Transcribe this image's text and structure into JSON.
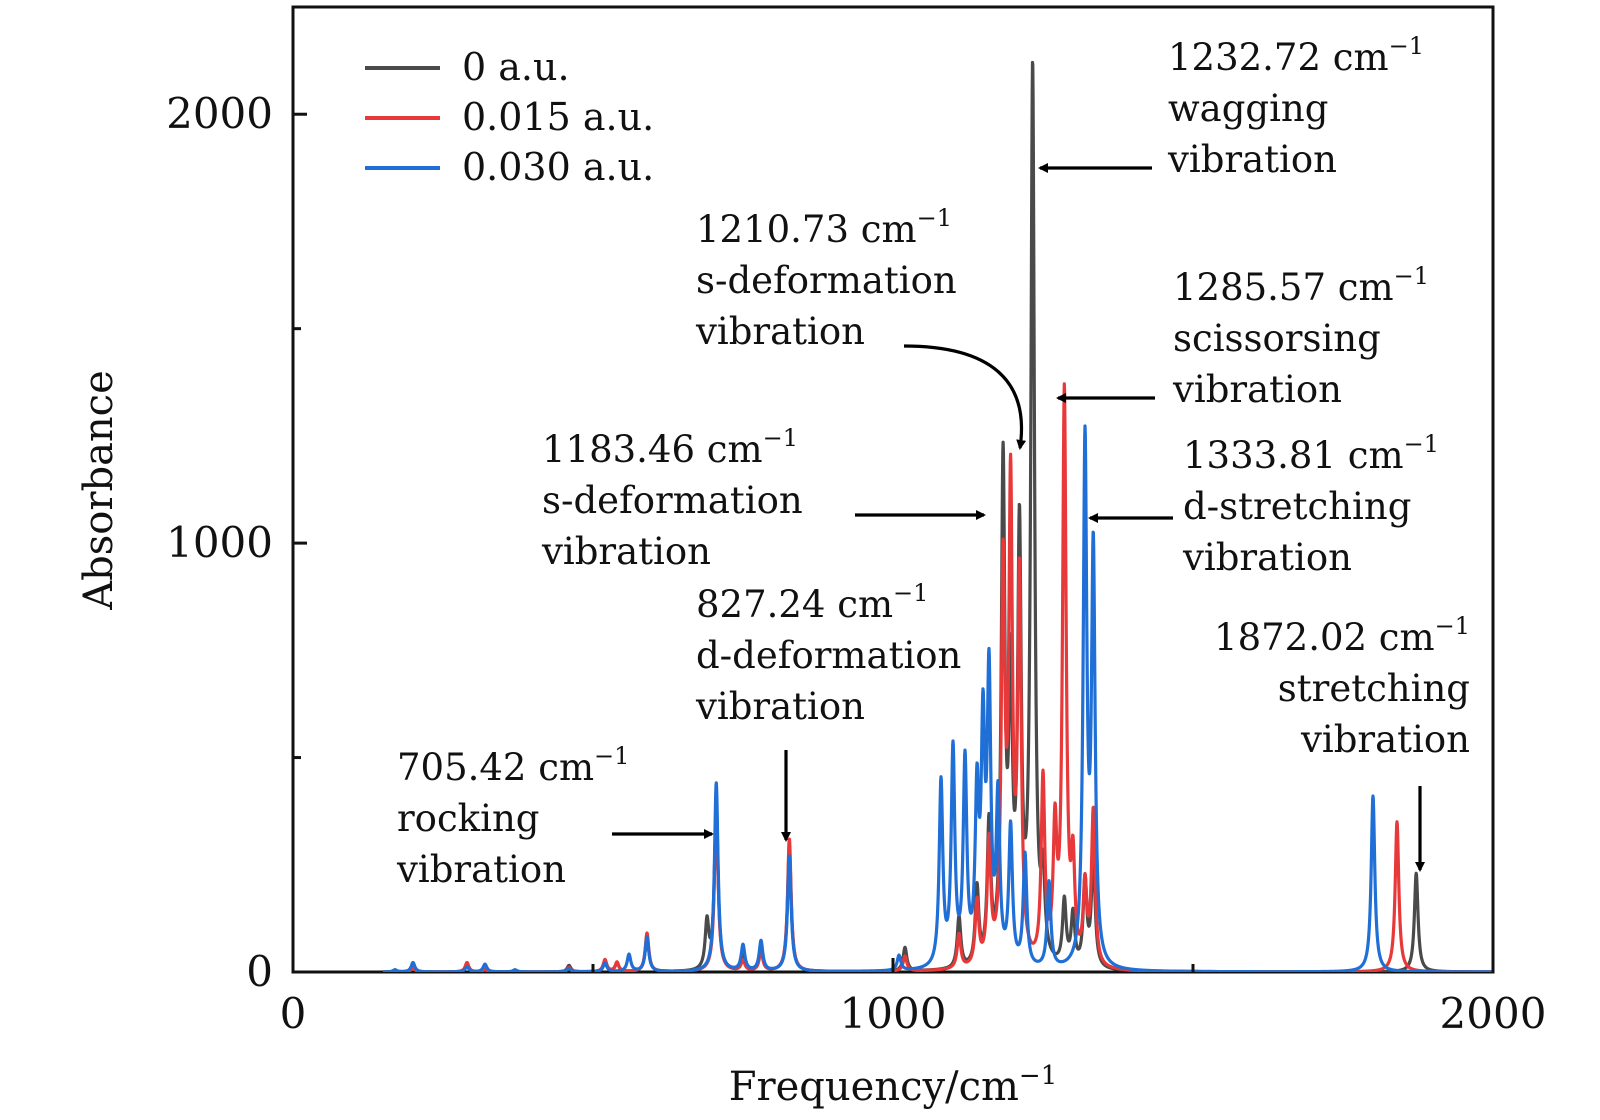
{
  "chart_data": {
    "type": "line",
    "title": "",
    "xlabel": "Frequency/cm",
    "xlabel_sup": "−1",
    "ylabel": "Absorbance",
    "xlim": [
      0,
      2000
    ],
    "ylim": [
      0,
      2250
    ],
    "x_ticks": [
      {
        "value": 0,
        "label": "0"
      },
      {
        "value": 1000,
        "label": "1000"
      },
      {
        "value": 2000,
        "label": "2000"
      }
    ],
    "x_minor_ticks": [
      500,
      1500
    ],
    "y_ticks": [
      {
        "value": 0,
        "label": "0"
      },
      {
        "value": 1000,
        "label": "1000"
      },
      {
        "value": 2000,
        "label": "2000"
      }
    ],
    "y_minor_ticks": [
      500,
      1500
    ],
    "legend_position": "top-left",
    "series": [
      {
        "name": "0 a.u.",
        "color": "#4a4a4a",
        "peaks": [
          [
            170,
            4
          ],
          [
            200,
            12
          ],
          [
            290,
            18
          ],
          [
            320,
            6
          ],
          [
            370,
            4
          ],
          [
            460,
            15
          ],
          [
            520,
            25
          ],
          [
            540,
            20
          ],
          [
            590,
            85
          ],
          [
            690,
            110
          ],
          [
            705.42,
            390
          ],
          [
            750,
            40
          ],
          [
            780,
            60
          ],
          [
            827.24,
            290
          ],
          [
            1020,
            55
          ],
          [
            1110,
            120
          ],
          [
            1140,
            180
          ],
          [
            1160,
            320
          ],
          [
            1183.46,
            1150
          ],
          [
            1196,
            620
          ],
          [
            1210.73,
            980
          ],
          [
            1232.72,
            2080
          ],
          [
            1250,
            180
          ],
          [
            1285.57,
            150
          ],
          [
            1300,
            120
          ],
          [
            1320,
            200
          ],
          [
            1333.81,
            260
          ],
          [
            1872.02,
            230
          ]
        ]
      },
      {
        "name": "0.015 a.u.",
        "color": "#e8393a",
        "peaks": [
          [
            170,
            3
          ],
          [
            200,
            10
          ],
          [
            290,
            22
          ],
          [
            320,
            5
          ],
          [
            460,
            10
          ],
          [
            520,
            28
          ],
          [
            540,
            22
          ],
          [
            590,
            90
          ],
          [
            705.42,
            380
          ],
          [
            750,
            25
          ],
          [
            780,
            45
          ],
          [
            827.24,
            310
          ],
          [
            1020,
            35
          ],
          [
            1110,
            80
          ],
          [
            1140,
            150
          ],
          [
            1160,
            280
          ],
          [
            1183.46,
            900
          ],
          [
            1196,
            1080
          ],
          [
            1210.73,
            880
          ],
          [
            1250,
            430
          ],
          [
            1270,
            300
          ],
          [
            1285.57,
            1330
          ],
          [
            1300,
            220
          ],
          [
            1320,
            180
          ],
          [
            1333.81,
            360
          ],
          [
            1840,
            350
          ]
        ]
      },
      {
        "name": "0.030 a.u.",
        "color": "#1f6fd6",
        "peaks": [
          [
            170,
            5
          ],
          [
            200,
            22
          ],
          [
            290,
            12
          ],
          [
            320,
            18
          ],
          [
            370,
            5
          ],
          [
            460,
            8
          ],
          [
            520,
            20
          ],
          [
            560,
            40
          ],
          [
            590,
            80
          ],
          [
            705.42,
            440
          ],
          [
            750,
            60
          ],
          [
            780,
            70
          ],
          [
            827.24,
            270
          ],
          [
            1010,
            35
          ],
          [
            1080,
            430
          ],
          [
            1100,
            500
          ],
          [
            1120,
            470
          ],
          [
            1140,
            380
          ],
          [
            1150,
            520
          ],
          [
            1160,
            650
          ],
          [
            1175,
            380
          ],
          [
            1196,
            320
          ],
          [
            1220,
            260
          ],
          [
            1260,
            200
          ],
          [
            1320,
            1210
          ],
          [
            1333.81,
            950
          ],
          [
            1800,
            410
          ]
        ]
      }
    ],
    "annotations": [
      {
        "id": "ann-1232",
        "lines": [
          "1232.72 cm",
          "wagging",
          "vibration"
        ],
        "sup": "−1",
        "peak_x": 1232.72
      },
      {
        "id": "ann-1210",
        "lines": [
          "1210.73 cm",
          "s-deformation",
          "vibration"
        ],
        "sup": "−1",
        "peak_x": 1210.73
      },
      {
        "id": "ann-1285",
        "lines": [
          "1285.57 cm",
          "scissorsing",
          "vibration"
        ],
        "sup": "−1",
        "peak_x": 1285.57
      },
      {
        "id": "ann-1183",
        "lines": [
          "1183.46 cm",
          "s-deformation",
          "vibration"
        ],
        "sup": "−1",
        "peak_x": 1183.46
      },
      {
        "id": "ann-1333",
        "lines": [
          "1333.81 cm",
          "d-stretching",
          "vibration"
        ],
        "sup": "−1",
        "peak_x": 1333.81
      },
      {
        "id": "ann-827",
        "lines": [
          "827.24 cm",
          "d-deformation",
          "vibration"
        ],
        "sup": "−1",
        "peak_x": 827.24
      },
      {
        "id": "ann-1872",
        "lines": [
          "1872.02 cm",
          "stretching",
          "vibration"
        ],
        "sup": "−1",
        "peak_x": 1872.02
      },
      {
        "id": "ann-705",
        "lines": [
          "705.42 cm",
          "rocking",
          "vibration"
        ],
        "sup": "−1",
        "peak_x": 705.42
      }
    ]
  }
}
